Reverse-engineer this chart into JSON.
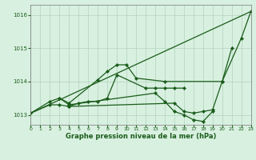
{
  "title": "Graphe pression niveau de la mer (hPa)",
  "bg_color": "#d8f0e0",
  "grid_color": "#b0d4bc",
  "line_color": "#1a5c1a",
  "xlim": [
    0,
    23
  ],
  "ylim": [
    1012.7,
    1016.3
  ],
  "yticks": [
    1013,
    1014,
    1015,
    1016
  ],
  "xticks": [
    0,
    1,
    2,
    3,
    4,
    5,
    6,
    7,
    8,
    9,
    10,
    11,
    12,
    13,
    14,
    15,
    16,
    17,
    18,
    19,
    20,
    21,
    22,
    23
  ],
  "lines": [
    {
      "x": [
        0,
        23
      ],
      "y": [
        1013.05,
        1016.1
      ],
      "marker": false
    },
    {
      "x": [
        0,
        2,
        3,
        4,
        7,
        8,
        9,
        10,
        11,
        14,
        20,
        22,
        23
      ],
      "y": [
        1013.05,
        1013.4,
        1013.5,
        1013.35,
        1014.05,
        1014.3,
        1014.5,
        1014.5,
        1014.1,
        1014.0,
        1014.0,
        1015.3,
        1016.1
      ],
      "marker": true
    },
    {
      "x": [
        0,
        2,
        3,
        4,
        5,
        6,
        7,
        8,
        9,
        12,
        13,
        14,
        15,
        16
      ],
      "y": [
        1013.05,
        1013.3,
        1013.3,
        1013.25,
        1013.35,
        1013.4,
        1013.4,
        1013.5,
        1014.2,
        1013.8,
        1013.8,
        1013.8,
        1013.8,
        1013.8
      ],
      "marker": true
    },
    {
      "x": [
        3,
        4,
        13,
        14,
        15,
        16,
        17,
        18,
        19
      ],
      "y": [
        1013.5,
        1013.3,
        1013.65,
        1013.4,
        1013.1,
        1013.0,
        1012.85,
        1012.8,
        1013.1
      ],
      "marker": true
    },
    {
      "x": [
        4,
        15,
        16,
        17,
        18,
        19,
        20,
        21
      ],
      "y": [
        1013.25,
        1013.35,
        1013.1,
        1013.05,
        1013.1,
        1013.15,
        1014.0,
        1015.0
      ],
      "marker": true
    }
  ]
}
